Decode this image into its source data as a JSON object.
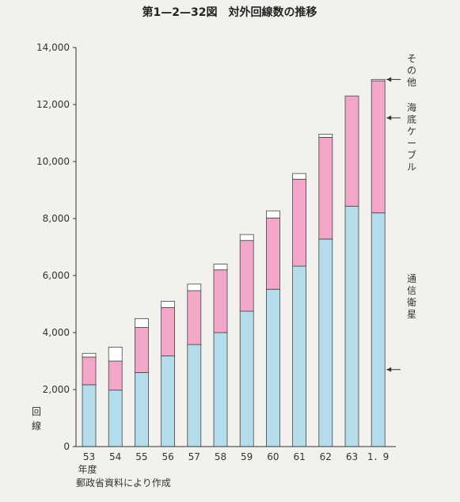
{
  "chart_data": {
    "type": "bar",
    "title": "第1—2—32図　対外回線数の推移",
    "categories": [
      "53",
      "54",
      "55",
      "56",
      "57",
      "58",
      "59",
      "60",
      "61",
      "62",
      "63",
      "1．9"
    ],
    "x_suffix_label": "年度",
    "ylabel": "回線",
    "ylim": [
      0,
      14000
    ],
    "yticks": [
      "0",
      "2,000",
      "4,000",
      "6,000",
      "8,000",
      "10,000",
      "12,000",
      "14,000"
    ],
    "stacked": true,
    "series": [
      {
        "name": "通信衛星",
        "color": "#b4dcea",
        "values": [
          2170,
          1980,
          2600,
          3180,
          3580,
          4000,
          4750,
          5520,
          6330,
          7280,
          8430,
          8200
        ]
      },
      {
        "name": "海底ケーブル",
        "color": "#f2a7c9",
        "values": [
          970,
          1020,
          1580,
          1700,
          1890,
          2200,
          2480,
          2500,
          3050,
          3570,
          3870,
          4630
        ]
      },
      {
        "name": "その他",
        "color": "#ffffff",
        "values": [
          130,
          490,
          310,
          220,
          230,
          200,
          210,
          250,
          200,
          110,
          0,
          50
        ]
      }
    ],
    "source": "郵政省資料により作成"
  }
}
